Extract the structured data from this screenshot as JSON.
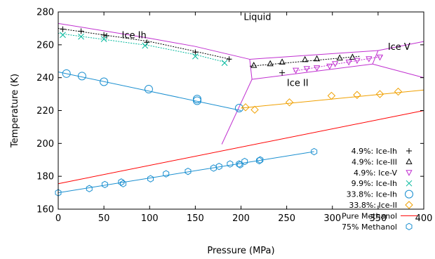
{
  "chart_data": {
    "type": "scatter",
    "xlabel": "Pressure (MPa)",
    "ylabel": "Temperature (K)",
    "xlim": [
      0,
      400
    ],
    "ylim": [
      160,
      280
    ],
    "xticks": [
      0,
      50,
      100,
      150,
      200,
      250,
      300,
      350,
      400
    ],
    "yticks": [
      160,
      180,
      200,
      220,
      240,
      260,
      280
    ],
    "grid": false,
    "legend_position": "bottom-right",
    "region_labels": [
      {
        "text": "Liquid",
        "x": 218,
        "y": 275
      },
      {
        "text": "Ice Ih",
        "x": 83,
        "y": 264
      },
      {
        "text": "Ice II",
        "x": 262,
        "y": 235
      },
      {
        "text": "Ice V",
        "x": 373,
        "y": 257
      }
    ],
    "phase_boundaries": {
      "color": "#c030d0",
      "lines": [
        {
          "name": "Ih-liquid",
          "points": [
            [
              0,
              273
            ],
            [
              100,
              264
            ],
            [
              150,
              259
            ],
            [
              209.5,
              251.2
            ]
          ]
        },
        {
          "name": "Ih-III",
          "points": [
            [
              209.5,
              251.2
            ],
            [
              212,
              239
            ]
          ]
        },
        {
          "name": "Ih-II",
          "points": [
            [
              212,
              239
            ],
            [
              179,
              199.5
            ]
          ]
        },
        {
          "name": "III-liquid",
          "points": [
            [
              209.5,
              251.2
            ],
            [
              350,
              256.5
            ]
          ]
        },
        {
          "name": "II-III",
          "points": [
            [
              212,
              239
            ],
            [
              344,
              248.3
            ]
          ]
        },
        {
          "name": "III-V",
          "points": [
            [
              344,
              248.3
            ],
            [
              350,
              256.5
            ]
          ]
        },
        {
          "name": "V-liquid",
          "points": [
            [
              350,
              256.5
            ],
            [
              400,
              262
            ]
          ]
        },
        {
          "name": "II-V",
          "points": [
            [
              344,
              248.3
            ],
            [
              400,
              240
            ]
          ]
        }
      ]
    },
    "series": [
      {
        "name": "4.9%: Ice-Ih",
        "marker": "plus",
        "color": "#000000",
        "x": [
          5,
          25,
          50,
          53,
          97,
          150,
          187,
          245
        ],
        "y": [
          269.5,
          268.3,
          266,
          265.5,
          261.5,
          255.5,
          251.3,
          243
        ],
        "fit": {
          "style": "dotted",
          "points": [
            [
              0,
              270
            ],
            [
              100,
              262
            ],
            [
              150,
              256
            ],
            [
              190,
              251
            ]
          ]
        }
      },
      {
        "name": "4.9%: Ice-III",
        "marker": "triangle-up",
        "color": "#000000",
        "x": [
          214,
          232,
          245,
          270,
          283,
          308,
          322
        ],
        "y": [
          247.5,
          248.5,
          249.5,
          251,
          251.5,
          252,
          252.5
        ],
        "fit": {
          "style": "dotted",
          "points": [
            [
              210,
              247
            ],
            [
              330,
              253
            ]
          ]
        }
      },
      {
        "name": "4.9%: Ice-V",
        "marker": "triangle-down",
        "color": "#c030d0",
        "x": [
          260,
          272,
          283,
          297,
          303,
          318,
          327,
          340,
          352
        ],
        "y": [
          244.5,
          245.5,
          246,
          247,
          248.5,
          249.5,
          250.5,
          251.5,
          252.5
        ],
        "fit": {
          "style": "dotted",
          "points": [
            [
              258,
              244
            ],
            [
              355,
              253
            ]
          ]
        }
      },
      {
        "name": "9.9%: Ice-Ih",
        "marker": "cross",
        "color": "#00b89c",
        "x": [
          5,
          25,
          50,
          95,
          150,
          182
        ],
        "y": [
          266,
          265,
          263.5,
          259.5,
          253,
          249
        ],
        "fit": {
          "style": "dotted",
          "points": [
            [
              0,
              267
            ],
            [
              100,
              259.5
            ],
            [
              150,
              254
            ],
            [
              182,
              249.5
            ]
          ]
        }
      },
      {
        "name": "33.8%: Ice-Ih",
        "marker": "circle",
        "color": "#1a8fd0",
        "x": [
          9,
          26,
          50,
          99,
          152,
          152,
          198
        ],
        "y": [
          242.5,
          241,
          237.5,
          233,
          227,
          226,
          221.5
        ],
        "fit": {
          "style": "solid",
          "points": [
            [
              0,
              243.5
            ],
            [
              200,
              220
            ]
          ]
        }
      },
      {
        "name": "33.8%: Ice-II",
        "marker": "diamond",
        "color": "#f0a000",
        "x": [
          205,
          215,
          253,
          299,
          327,
          352,
          372
        ],
        "y": [
          222,
          220.5,
          225,
          229,
          229.5,
          230,
          231.5
        ],
        "fit": {
          "style": "solid",
          "points": [
            [
              200,
              221.5
            ],
            [
              400,
              232.5
            ]
          ]
        }
      },
      {
        "name": "Pure Methanol",
        "marker": "line",
        "color": "#ff0000",
        "line": [
          [
            0,
            175.5
          ],
          [
            400,
            220
          ]
        ]
      },
      {
        "name": "75% Methanol",
        "marker": "hexagon",
        "color": "#1a8fd0",
        "x": [
          0,
          34,
          51,
          69,
          71,
          101,
          118,
          142,
          170,
          176,
          188,
          198,
          199,
          204,
          220,
          221,
          280
        ],
        "y": [
          170,
          172.5,
          175,
          176.5,
          175.5,
          178.5,
          181.5,
          183,
          185,
          186,
          187.5,
          187.5,
          187,
          189,
          189.5,
          190,
          195
        ],
        "fit": {
          "style": "solid",
          "points": [
            [
              0,
              170
            ],
            [
              280,
              195
            ]
          ]
        }
      }
    ]
  }
}
